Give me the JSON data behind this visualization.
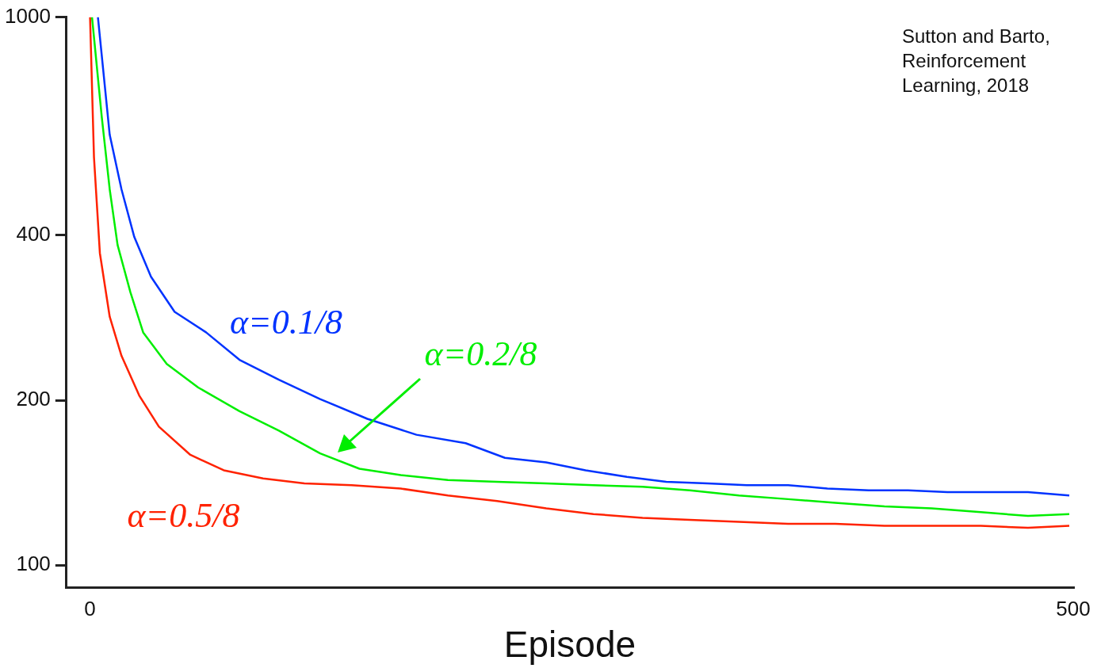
{
  "chart_data": {
    "type": "line",
    "xlabel": "Episode",
    "annotations": [
      "Sutton and Barto,\nReinforcement\nLearning, 2018"
    ],
    "log": "y",
    "xlim": [
      -12,
      500
    ],
    "ylim": [
      91,
      1000
    ],
    "xticks": [
      0,
      500
    ],
    "yticks": [
      100,
      200,
      400,
      1000
    ],
    "grid": false,
    "legend": false,
    "marker": "none",
    "line_style": "solid",
    "series": [
      {
        "name": "α=0.1/8",
        "color": "#0033ff",
        "x": [
          4,
          10,
          16,
          22.5,
          31,
          43,
          59,
          76,
          96,
          117,
          141,
          166,
          191,
          211,
          232,
          252,
          273,
          293,
          314,
          334,
          355,
          375,
          396,
          416,
          436,
          457,
          477,
          498
        ],
        "values": [
          1000,
          610,
          485,
          397,
          336,
          290,
          266,
          237,
          218,
          201,
          185,
          173,
          167,
          157,
          154,
          149,
          145,
          142,
          141,
          140,
          140,
          138,
          137,
          137,
          136,
          136,
          136,
          134
        ]
      },
      {
        "name": "α=0.2/8",
        "color": "#00ee00",
        "x": [
          1,
          6,
          10,
          14,
          20.5,
          27,
          39,
          55,
          76,
          96,
          117,
          137,
          158,
          182,
          207,
          232,
          256,
          281,
          305,
          330,
          355,
          379,
          404,
          428,
          453,
          477,
          498
        ],
        "values": [
          1000,
          655,
          485,
          384,
          315,
          266,
          233,
          211,
          191,
          176,
          160,
          150,
          146,
          143,
          142,
          141,
          140,
          139,
          137,
          134,
          132,
          130,
          128,
          127,
          125,
          123,
          124
        ]
      },
      {
        "name": "α=0.5/8",
        "color": "#ff2200",
        "x": [
          0,
          2,
          5,
          10,
          16,
          25,
          35,
          51,
          68,
          88,
          109,
          133,
          158,
          182,
          207,
          232,
          256,
          281,
          305,
          330,
          355,
          379,
          404,
          428,
          453,
          477,
          498
        ],
        "values": [
          1000,
          555,
          371,
          284,
          241,
          204,
          179,
          159,
          149,
          144,
          141,
          140,
          138,
          134,
          131,
          127,
          124,
          122,
          121,
          120,
          119,
          119,
          118,
          118,
          118,
          117,
          118
        ]
      }
    ]
  }
}
